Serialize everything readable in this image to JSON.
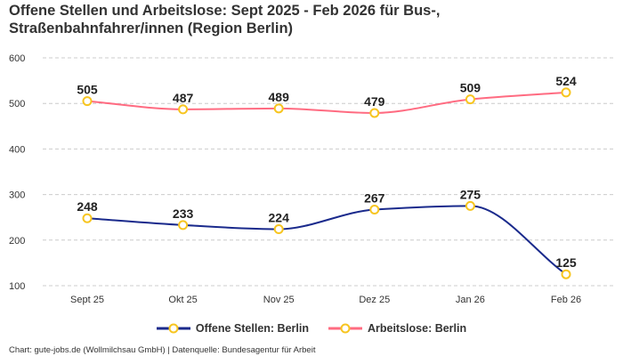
{
  "title": "Offene Stellen und Arbeitslose: Sept 2025 - Feb 2026 für Bus-, Straßenbahnfahrer/innen (Region Berlin)",
  "footer": "Chart: gute-jobs.de (Wollmilchsau GmbH) | Datenquelle: Bundesagentur für Arbeit",
  "colors": {
    "offene": "#1a2a8c",
    "arbeitslose": "#ff6b81",
    "marker": "#f7c520",
    "grid": "#cccccc"
  },
  "chart_data": {
    "type": "line",
    "categories": [
      "Sept 25",
      "Okt 25",
      "Nov 25",
      "Dez 25",
      "Jan 26",
      "Feb 26"
    ],
    "series": [
      {
        "name": "Offene Stellen: Berlin",
        "values": [
          248,
          233,
          224,
          267,
          275,
          125
        ]
      },
      {
        "name": "Arbeitslose: Berlin",
        "values": [
          505,
          487,
          489,
          479,
          509,
          524
        ]
      }
    ],
    "yticks": [
      100,
      200,
      300,
      400,
      500,
      600
    ],
    "ylim": [
      100,
      600
    ],
    "grid": true,
    "legend": "bottom",
    "data_labels": true
  }
}
